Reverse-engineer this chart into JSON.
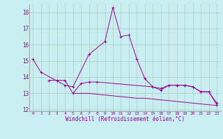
{
  "x": [
    0,
    1,
    2,
    3,
    4,
    5,
    6,
    7,
    8,
    9,
    10,
    11,
    12,
    13,
    14,
    15,
    16,
    17,
    18,
    19,
    20,
    21,
    22,
    23
  ],
  "line1_y": [
    15.1,
    14.3,
    null,
    null,
    13.5,
    13.4,
    null,
    15.4,
    null,
    16.2,
    18.3,
    16.5,
    16.6,
    15.1,
    13.9,
    13.4,
    13.3,
    13.5,
    13.5,
    13.5,
    13.4,
    13.1,
    13.1,
    12.3
  ],
  "line2_y": [
    null,
    null,
    13.8,
    13.8,
    13.8,
    13.0,
    13.6,
    13.7,
    13.7,
    null,
    null,
    null,
    null,
    null,
    null,
    13.4,
    13.2,
    13.5,
    13.5,
    13.5,
    13.4,
    13.1,
    13.1,
    12.4
  ],
  "line3_y": [
    null,
    null,
    null,
    null,
    null,
    13.0,
    13.0,
    13.0,
    12.95,
    12.9,
    12.85,
    12.8,
    12.75,
    12.7,
    12.7,
    12.65,
    12.6,
    12.55,
    12.5,
    12.45,
    12.4,
    12.35,
    12.3,
    12.25
  ],
  "ylim": [
    11.9,
    18.5
  ],
  "xlim": [
    -0.5,
    23.5
  ],
  "yticks": [
    12,
    13,
    14,
    15,
    16,
    17,
    18
  ],
  "xtick_labels": [
    "0",
    "1",
    "2",
    "3",
    "4",
    "5",
    "6",
    "7",
    "8",
    "9",
    "10",
    "11",
    "12",
    "13",
    "14",
    "15",
    "16",
    "17",
    "18",
    "19",
    "20",
    "21",
    "22",
    "23"
  ],
  "xlabel": "Windchill (Refroidissement éolien,°C)",
  "line_color": "#990099",
  "bg_color": "#c8eef0",
  "grid_color": "#b0c8c8",
  "spine_color": "#888888"
}
